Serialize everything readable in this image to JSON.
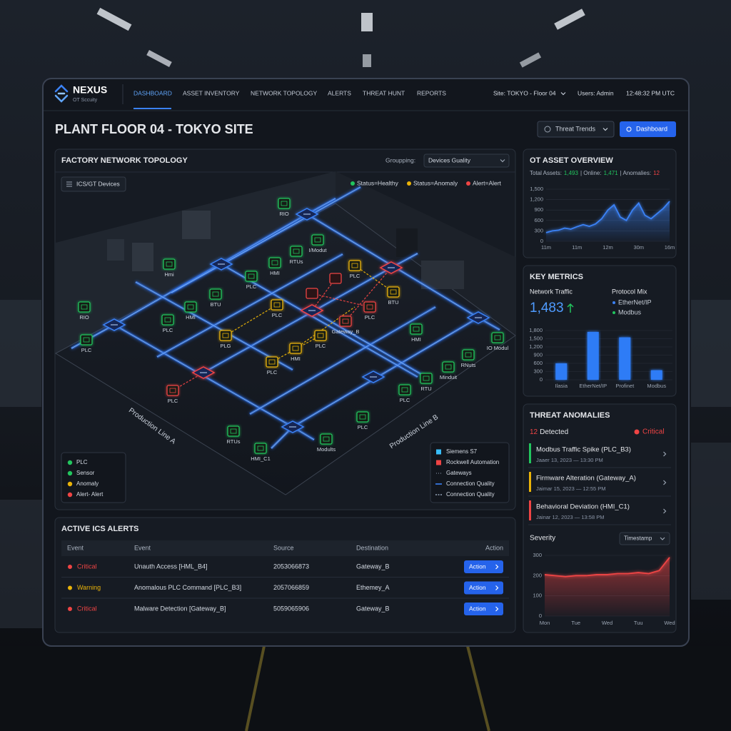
{
  "nav": {
    "brand": "NEXUS",
    "tagline": "OT Sccuity",
    "items": [
      "DASHBOARD",
      "ASSET INVENTORY",
      "NETWORK TOPOLOGY",
      "ALERTS",
      "THREAT HUNT",
      "REPORTS"
    ],
    "site": "Site: TOKYO - Floor 04",
    "user": "Users: Admin",
    "time": "12:48:32 PM UTC"
  },
  "header": {
    "title": "PLANT FLOOR 04 - TOKYO SITE",
    "buttons": [
      "Threat Trends",
      "Dashboard"
    ]
  },
  "topology": {
    "title": "FACTORY NETWORK TOPOLOGY",
    "grouping_label": "Groupping:",
    "grouping_value": "Devices Guality",
    "filter": "ICS/GT Devices",
    "status_colors": {
      "healthy": "#22c55e",
      "anomaly": "#eab308",
      "alert": "#ef4444"
    },
    "status_legend": [
      {
        "label": "Status=Healthy",
        "status": "healthy"
      },
      {
        "label": "Status=Anomaly",
        "status": "anomaly"
      },
      {
        "label": "Alert=Alert",
        "status": "alert"
      }
    ],
    "nodes": [
      {
        "label": "RIO",
        "status": "healthy"
      },
      {
        "label": "RTUs",
        "status": "healthy"
      },
      {
        "label": "I/Modut",
        "status": "healthy"
      },
      {
        "label": "HMI",
        "status": "healthy"
      },
      {
        "label": "PLC",
        "status": "healthy"
      },
      {
        "label": "Hmi",
        "status": "healthy"
      },
      {
        "label": "BTU",
        "status": "healthy"
      },
      {
        "label": "HMI",
        "status": "healthy"
      },
      {
        "label": "PLC",
        "status": "healthy"
      },
      {
        "label": "RIO",
        "status": "healthy"
      },
      {
        "label": "PLC",
        "status": "healthy"
      },
      {
        "label": "PLC",
        "status": "anomaly"
      },
      {
        "label": "BTU",
        "status": "anomaly"
      },
      {
        "label": "PLC",
        "status": "alert"
      },
      {
        "label": "Gateway_B",
        "status": "alert"
      },
      {
        "label": "PLC",
        "status": "anomaly"
      },
      {
        "label": "PLG",
        "status": "anomaly"
      },
      {
        "label": "HMI",
        "status": "anomaly"
      },
      {
        "label": "PLC",
        "status": "anomaly"
      },
      {
        "label": "PLC",
        "status": "anomaly"
      },
      {
        "label": "HMI",
        "status": "healthy"
      },
      {
        "label": "IO Modul",
        "status": "healthy"
      },
      {
        "label": "RNuts",
        "status": "healthy"
      },
      {
        "label": "Minduit",
        "status": "healthy"
      },
      {
        "label": "RTU",
        "status": "healthy"
      },
      {
        "label": "PLC",
        "status": "healthy"
      },
      {
        "label": "PLC",
        "status": "alert"
      },
      {
        "label": "RTUs",
        "status": "healthy"
      },
      {
        "label": "HMI_C1",
        "status": "healthy"
      },
      {
        "label": "Modults",
        "status": "healthy"
      },
      {
        "label": "PLC",
        "status": "healthy"
      }
    ],
    "zones": [
      "Production Line A",
      "Production Line B"
    ],
    "device_legend": [
      {
        "label": "PLC",
        "status": "healthy"
      },
      {
        "label": "Sensor",
        "status": "healthy"
      },
      {
        "label": "Anomaly",
        "status": "anomaly"
      },
      {
        "label": "Alert- Alert",
        "status": "alert"
      }
    ],
    "vendor_legend": [
      {
        "label": "Siemens S7",
        "color": "#38bdf8",
        "marker": "square"
      },
      {
        "label": "Rockwell Automation",
        "color": "#ef4444",
        "marker": "square"
      },
      {
        "label": "Gateways",
        "color": "#94a3b8",
        "marker": "dots"
      },
      {
        "label": "Connection Quality",
        "color": "#3b82f6",
        "marker": "line"
      },
      {
        "label": "Connection Quality",
        "color": "#94a3b8",
        "marker": "dash"
      }
    ]
  },
  "alerts": {
    "title": "ACTIVE ICS ALERTS",
    "columns": [
      "Event",
      "Event",
      "Source",
      "Destination",
      "Action"
    ],
    "severity_colors": {
      "Critical": "#ef4444",
      "Warning": "#eab308"
    },
    "rows": [
      {
        "severity": "Critical",
        "event": "Unauth Access [HML_B4]",
        "source": "2053066873",
        "destination": "Gateway_B",
        "action": "Action"
      },
      {
        "severity": "Warning",
        "event": "Anomalous PLC Command [PLC_B3]",
        "source": "2057066859",
        "destination": "Ethemey_A",
        "action": "Action"
      },
      {
        "severity": "Critical",
        "event": "Malware Detection [Gateway_B]",
        "source": "5059065906",
        "destination": "Gateway_B",
        "action": "Action"
      }
    ]
  },
  "anomalies": {
    "title": "THREAT ANOMALIES",
    "count": "12",
    "count_label": "Detected",
    "level": "Critical",
    "items": [
      {
        "title": "Modbus Traffic Spike (PLC_B3)",
        "date": "Jaaer 13, 2023 — 13:30 PM",
        "color": "#22c55e"
      },
      {
        "title": "Firmware Alteration (Gateway_A)",
        "date": "Jaimar 15, 2023 — 12:55 PM",
        "color": "#eab308"
      },
      {
        "title": "Behavioral Deviation (HMI_C1)",
        "date": "Jainar 12, 2023 — 13:58 PM",
        "color": "#ef4444"
      }
    ]
  },
  "chart_data": [
    {
      "type": "area",
      "title": "OT ASSET OVERVIEW",
      "summary": [
        {
          "label": "Total Assets:",
          "value": "1,493",
          "color": "#22c55e"
        },
        {
          "label": "| Online:",
          "value": "1,471",
          "color": "#22c55e"
        },
        {
          "label": "| Anomalies:",
          "value": "12",
          "color": "#ef4444"
        }
      ],
      "categories": [
        "11m",
        null,
        null,
        null,
        null,
        "11m",
        null,
        null,
        null,
        null,
        "12m",
        null,
        null,
        null,
        null,
        "30m",
        null,
        null,
        null,
        null,
        "16m"
      ],
      "values": [
        250,
        300,
        320,
        380,
        350,
        420,
        480,
        430,
        500,
        650,
        900,
        1050,
        700,
        600,
        900,
        1100,
        750,
        650,
        800,
        950,
        1150
      ],
      "color": "#3b82f6",
      "ylim": [
        0,
        1500
      ],
      "yticks": [
        0,
        300,
        600,
        900,
        {
          "value": 1200,
          "label": "1,200"
        },
        {
          "value": 1500,
          "label": "1,500"
        }
      ],
      "grid": true
    },
    {
      "type": "bar",
      "title": "KEY METRICS",
      "metric_label": "Network Traffic",
      "metric_value": "1,483",
      "mix_label": "Protocol Mix",
      "mix": [
        {
          "label": "EtherNet/IP",
          "color": "#3b82f6"
        },
        {
          "label": "Modbus",
          "color": "#22c55e"
        }
      ],
      "categories": [
        "Ilasia",
        "EtherNet/IP",
        "Profinet",
        "Modbus"
      ],
      "values": [
        600,
        1750,
        1550,
        350
      ],
      "color": "#2f7cf6",
      "ylim": [
        0,
        1800
      ],
      "yticks": [
        0,
        300,
        600,
        900,
        {
          "value": 1200,
          "label": "1,200"
        },
        {
          "value": 1500,
          "label": "1,500"
        },
        {
          "value": 1800,
          "label": "1,800"
        }
      ],
      "grid": true
    },
    {
      "type": "area",
      "title": "Severity",
      "dropdown": "Timestamp",
      "categories": [
        "Mon",
        null,
        null,
        "Tue",
        null,
        null,
        "Wed",
        null,
        null,
        "Tuu",
        null,
        null,
        "Wed"
      ],
      "values": [
        205,
        200,
        195,
        200,
        200,
        205,
        205,
        210,
        210,
        215,
        210,
        225,
        290
      ],
      "color": "#ef4444",
      "ylim": [
        0,
        300
      ],
      "yticks": [
        0,
        100,
        200,
        300
      ],
      "grid": true
    }
  ]
}
